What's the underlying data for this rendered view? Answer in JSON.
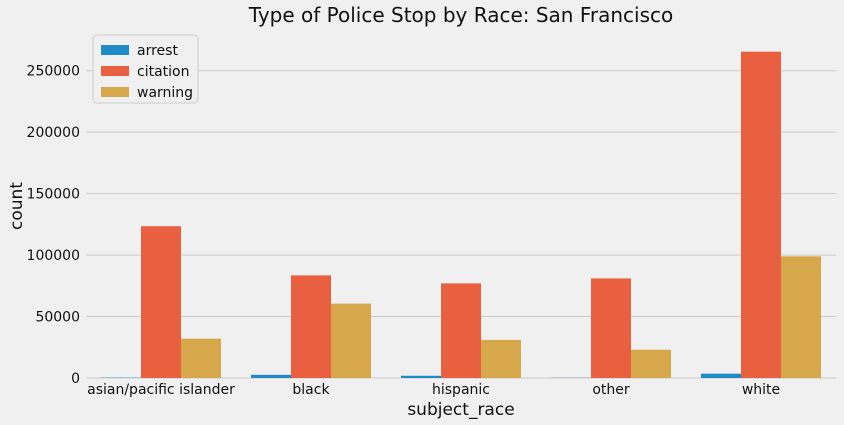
{
  "chart_data": {
    "type": "bar",
    "title": "Type of Police Stop by Race: San Francisco",
    "xlabel": "subject_race",
    "ylabel": "count",
    "categories": [
      "asian/pacific islander",
      "black",
      "hispanic",
      "other",
      "white"
    ],
    "series": [
      {
        "name": "arrest",
        "color": "#1f8bc6",
        "values": [
          300,
          2600,
          1800,
          200,
          3500
        ]
      },
      {
        "name": "citation",
        "color": "#e8603f",
        "values": [
          123500,
          83500,
          77000,
          81000,
          265500
        ]
      },
      {
        "name": "warning",
        "color": "#d6a84b",
        "values": [
          32000,
          60500,
          31000,
          23000,
          99000
        ]
      }
    ],
    "ylim": [
      0,
      275000
    ],
    "yticks": [
      0,
      50000,
      100000,
      150000,
      200000,
      250000
    ],
    "grid": true,
    "legend_position": "top-left"
  }
}
